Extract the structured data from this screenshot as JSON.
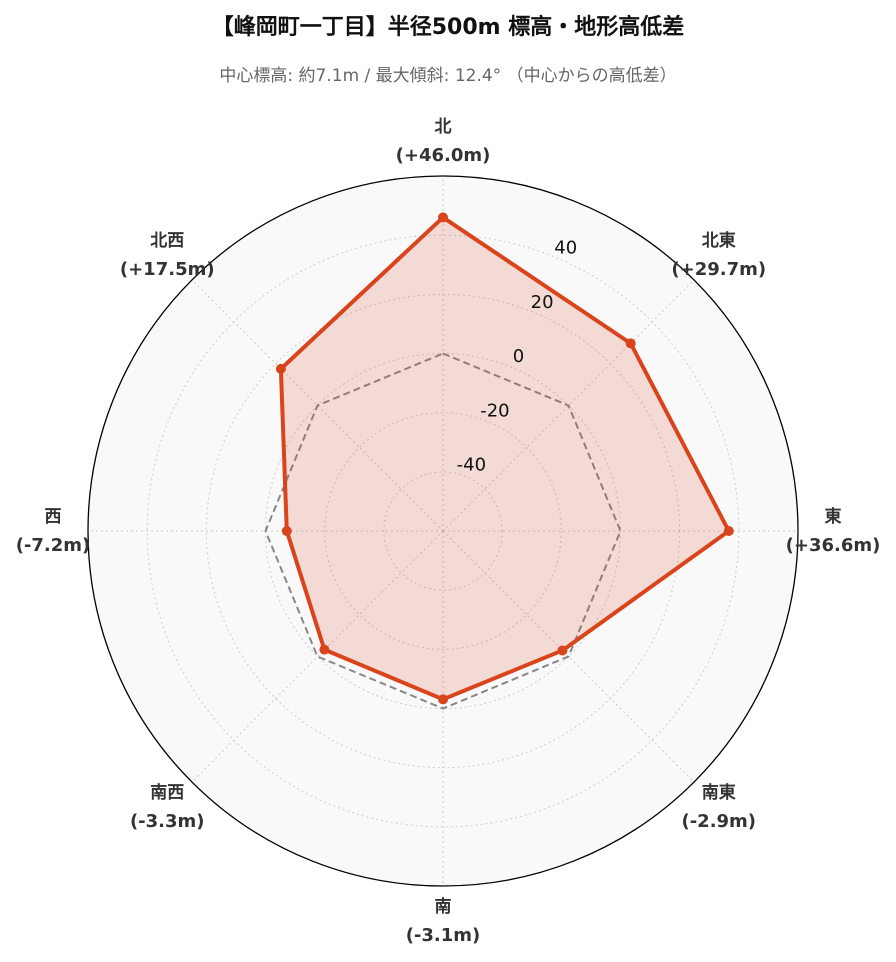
{
  "chart_data": {
    "type": "radar",
    "title": "【峰岡町一丁目】半径500m 標高・地形高低差",
    "subtitle": "中心標高: 約7.1m / 最大傾斜: 12.4° （中心からの高低差）",
    "categories": [
      "北",
      "北東",
      "東",
      "南東",
      "南",
      "南西",
      "西",
      "北西"
    ],
    "values": [
      46.0,
      29.7,
      36.6,
      -2.9,
      -3.1,
      -3.3,
      -7.2,
      17.5
    ],
    "value_labels": [
      "(+46.0m)",
      "(+29.7m)",
      "(+36.6m)",
      "(-2.9m)",
      "(-3.1m)",
      "(-3.3m)",
      "(-7.2m)",
      "(+17.5m)"
    ],
    "color": "#d9441c",
    "reference_value": 0,
    "ylim": [
      -60,
      60
    ],
    "yticks": [
      -40,
      -20,
      0,
      20,
      40
    ],
    "grid": true
  }
}
